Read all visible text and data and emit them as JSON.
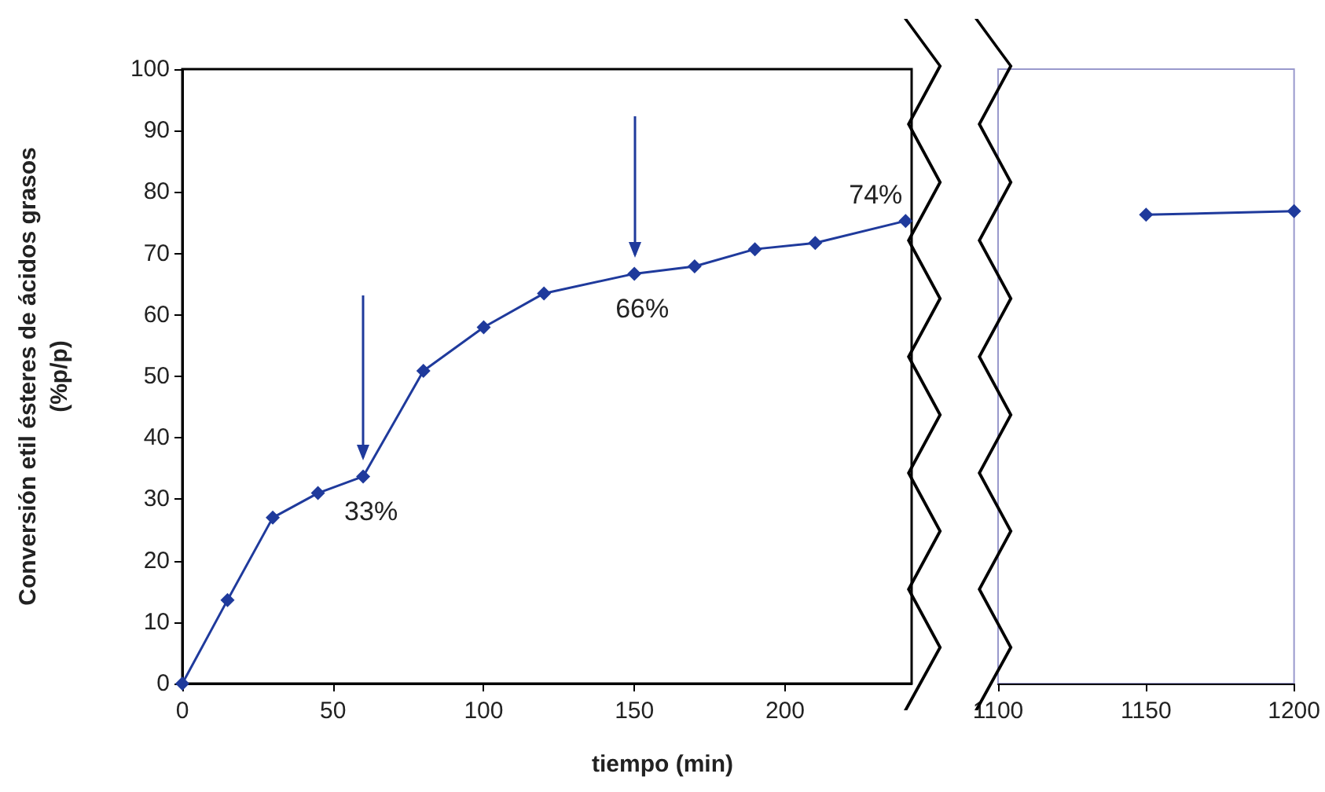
{
  "chart_data": [
    {
      "type": "line",
      "xlabel": "tiempo (min)",
      "ylabel": "Conversión etil ésteres de ácidos grasos\n(%p/p)",
      "x": [
        0,
        15,
        30,
        45,
        60,
        80,
        100,
        120,
        150,
        170,
        190,
        210,
        240
      ],
      "series": [
        {
          "color": "#1f3a9c",
          "values": [
            0,
            13.6,
            27,
            31,
            33.7,
            50.9,
            58,
            63.5,
            66.7,
            67.9,
            70.7,
            71.7,
            75.3
          ]
        }
      ],
      "xlim": [
        0,
        242
      ],
      "xticks": [
        0,
        50,
        100,
        150,
        200
      ],
      "ylim": [
        0,
        100
      ],
      "yticks": [
        0,
        10,
        20,
        30,
        40,
        50,
        60,
        70,
        80,
        90,
        100
      ],
      "grid": false,
      "marker": "diamond",
      "line_style": "solid",
      "annotations": [
        {
          "text": "33%",
          "x": 60,
          "y": 33.7
        },
        {
          "text": "66%",
          "x": 150,
          "y": 66.7
        },
        {
          "text": "74%",
          "x": 240,
          "y": 75.3
        }
      ]
    },
    {
      "type": "line",
      "x": [
        1150,
        1200
      ],
      "series": [
        {
          "color": "#1f3a9c",
          "values": [
            76.3,
            76.9
          ]
        }
      ],
      "xlim": [
        1100,
        1200
      ],
      "xticks": [
        1100,
        1150,
        1200
      ],
      "ylim": [
        0,
        100
      ],
      "yticks": [
        0,
        10,
        20,
        30,
        40,
        50,
        60,
        70,
        80,
        90,
        100
      ],
      "grid": false,
      "marker": "diamond",
      "line_style": "solid",
      "tick_labels": "x"
    }
  ]
}
